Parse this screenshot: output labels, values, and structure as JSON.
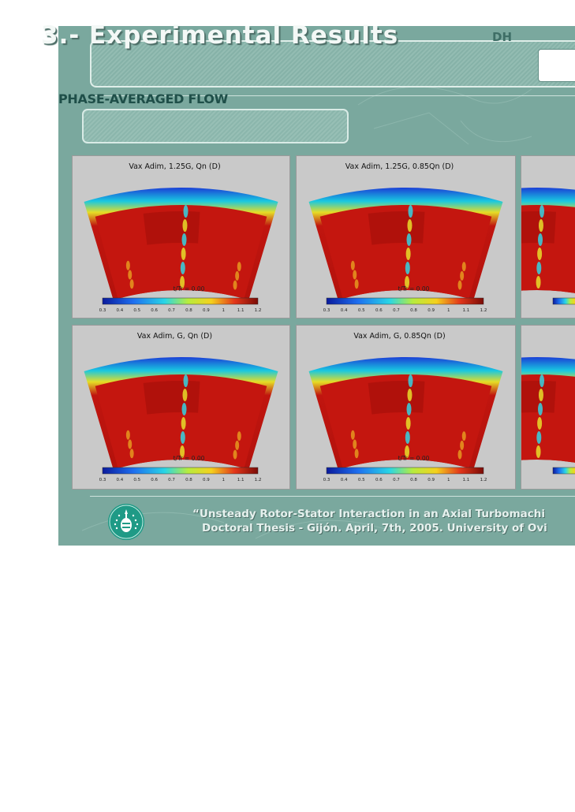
{
  "slide": {
    "title": "3.- Experimental Results",
    "badge_text": "DH",
    "section_title": "PHASE-AVERAGED FLOW",
    "footer_line1": "“Unsteady Rotor-Stator Interaction in an Axial Turbomachi",
    "footer_line2": "Doctoral Thesis - Gijón. April, 7th, 2005. University of Ovi"
  },
  "panels": [
    {
      "title": "Vax Adim, 1.25G, Qn (D)",
      "time_label": "t/Tr = 0.00"
    },
    {
      "title": "Vax Adim, 1.25G, 0.85Qn (D)",
      "time_label": "t/Tr = 0.00"
    },
    {
      "title": "",
      "time_label": ""
    },
    {
      "title": "Vax Adim, G, Qn (D)",
      "time_label": "t/Tr = 0.00"
    },
    {
      "title": "Vax Adim, G, 0.85Qn (D)",
      "time_label": "t/Tr = 0.00"
    },
    {
      "title": "",
      "time_label": ""
    }
  ],
  "colorbar_ticks": [
    "0.3",
    "0.4",
    "0.5",
    "0.6",
    "0.7",
    "0.8",
    "0.9",
    "1",
    "1.1",
    "1.2"
  ],
  "colors": {
    "slide_bg": "#7aa89e",
    "panel_bg": "#c9c9c9",
    "hot": "#c0150f",
    "cold": "#1438d0"
  }
}
